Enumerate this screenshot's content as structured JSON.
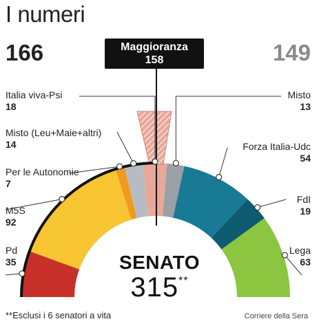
{
  "header": {
    "title": "I numeri",
    "left_count": "166",
    "right_count": "149"
  },
  "majority": {
    "label": "Maggioranza",
    "value": "158"
  },
  "center": {
    "label": "SENATO",
    "total": "315",
    "total_mark": "**"
  },
  "footnote": "**Esclusi i 6 senatori a vita",
  "source": "Corriere della Sera",
  "colors": {
    "pd": "#c8302a",
    "m5s": "#f7c531",
    "per_le_autonomie": "#f09a1e",
    "misto_leu": "#b7bcc4",
    "italia_viva": "#e9a898",
    "misto": "#9aa0a6",
    "forza_italia": "#197a96",
    "fdi": "#0e5a70",
    "lega": "#8cc540"
  },
  "chart_data": {
    "type": "pie",
    "title": "SENATO",
    "total": 315,
    "majority": 158,
    "slices": [
      {
        "key": "pd",
        "label": "Pd",
        "value": 35
      },
      {
        "key": "m5s",
        "label": "M5S",
        "value": 92
      },
      {
        "key": "per_le_autonomie",
        "label": "Per le Autonomie",
        "value": 7
      },
      {
        "key": "misto_leu",
        "label": "Misto (Leu+Maie+altri)",
        "value": 14
      },
      {
        "key": "italia_viva",
        "label": "Italia viva-Psi",
        "value": 18
      },
      {
        "key": "misto",
        "label": "Misto",
        "value": 13
      },
      {
        "key": "forza_italia",
        "label": "Forza Italia-Udc",
        "value": 54
      },
      {
        "key": "fdi",
        "label": "FdI",
        "value": 19
      },
      {
        "key": "lega",
        "label": "Lega",
        "value": 63
      }
    ]
  }
}
